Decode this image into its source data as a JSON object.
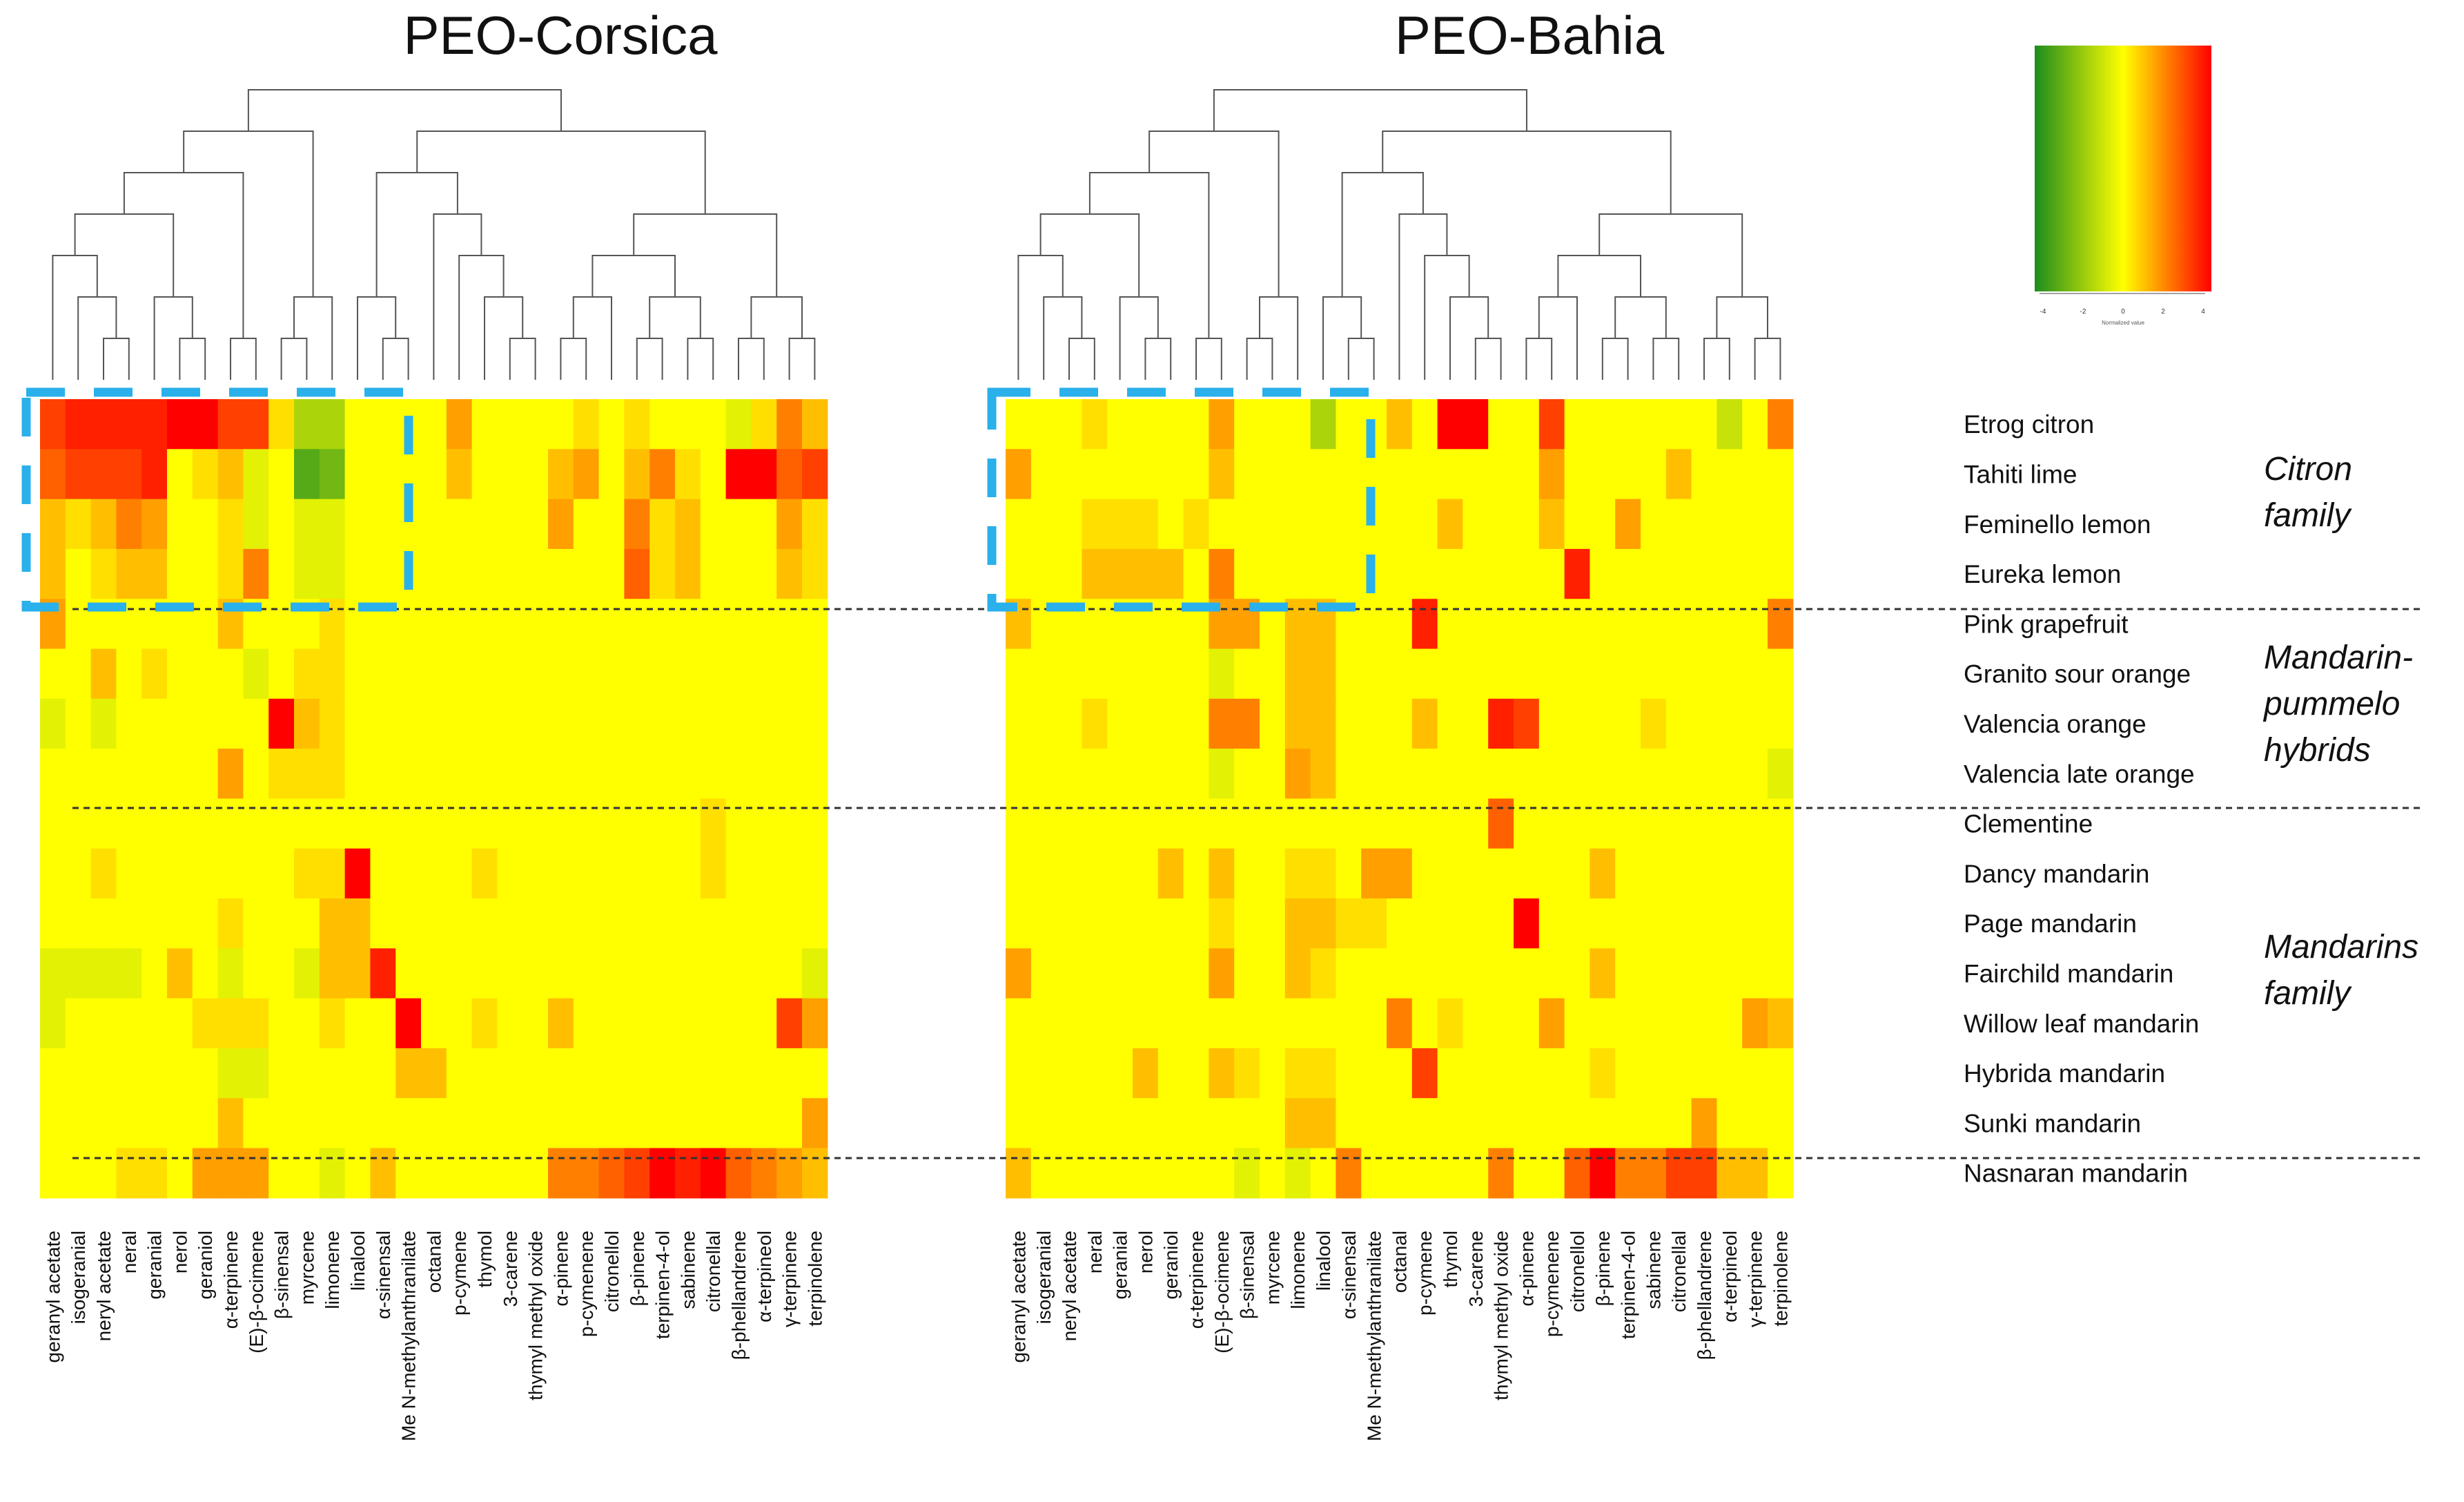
{
  "titles": {
    "left": "PEO-Corsica",
    "right": "PEO-Bahia"
  },
  "legend": {
    "ticks": [
      "-4",
      "-2",
      "0",
      "2",
      "4"
    ],
    "caption": "Normalized value",
    "colors": {
      "low": "#1e8c1e",
      "mid": "#ffff00",
      "high": "#ff0000"
    }
  },
  "families": [
    {
      "line1": "Citron",
      "line2": "family"
    },
    {
      "line1": "Mandarin-",
      "line2": "pummelo",
      "line3": "hybrids"
    },
    {
      "line1": "Mandarins",
      "line2": "family"
    }
  ],
  "chart_data": [
    {
      "type": "heatmap",
      "title": "PEO-Corsica",
      "value_range": [
        -4,
        4
      ],
      "rows": [
        "Etrog citron",
        "Tahiti lime",
        "Feminello lemon",
        "Eureka lemon",
        "Pink grapefruit",
        "Granito sour orange",
        "Valencia orange",
        "Valencia late orange",
        "Clementine",
        "Dancy mandarin",
        "Page mandarin",
        "Fairchild mandarin",
        "Willow leaf mandarin",
        "Hybrida mandarin",
        "Sunki mandarin",
        "Nasnaran mandarin"
      ],
      "columns": [
        "geranyl acetate",
        "isogeranial",
        "neryl acetate",
        "neral",
        "geranial",
        "nerol",
        "geraniol",
        "α-terpinene",
        "(E)-β-ocimene",
        "β-sinensal",
        "myrcene",
        "limonene",
        "linalool",
        "α-sinensal",
        "Me N-methylanthranilate",
        "octanal",
        "p-cymene",
        "thymol",
        "3-carene",
        "thymyl methyl oxide",
        "α-pinene",
        "p-cymenene",
        "citronellol",
        "β-pinene",
        "terpinen-4-ol",
        "sabinene",
        "citronellal",
        "β-phellandrene",
        "α-terpineol",
        "γ-terpinene",
        "terpinolene"
      ],
      "cells": [
        [
          3,
          3.5,
          3.5,
          3.5,
          3.5,
          4,
          4,
          3,
          3,
          0.5,
          -1.5,
          -1.5,
          0,
          0,
          0,
          0,
          1.5,
          0,
          0,
          0,
          0,
          0.5,
          0,
          0.5,
          0,
          0,
          0,
          -0.5,
          0.5,
          2,
          1
        ],
        [
          2.5,
          3,
          3,
          3,
          3.5,
          0,
          0.5,
          1,
          -0.5,
          0,
          -3,
          -2.5,
          0,
          0,
          0,
          0,
          1,
          0,
          0,
          0,
          1,
          1.5,
          0,
          1,
          2,
          0.5,
          0,
          4,
          4,
          2.5,
          3
        ],
        [
          1,
          0.5,
          1,
          2,
          1.5,
          0,
          0,
          0.5,
          -0.5,
          0,
          -0.5,
          -0.5,
          0,
          0,
          0,
          0,
          0,
          0,
          0,
          0,
          1.5,
          0,
          0,
          2,
          0.5,
          1,
          0,
          0,
          0,
          1.5,
          0.5
        ],
        [
          1,
          0,
          0.5,
          1,
          1,
          0,
          0,
          0.5,
          2,
          0,
          -0.5,
          -0.5,
          0,
          0,
          0,
          0,
          0,
          0,
          0,
          0,
          0,
          0,
          0,
          2.5,
          0.5,
          1,
          0,
          0,
          0,
          1,
          0.5
        ],
        [
          1.5,
          0,
          0,
          0,
          0,
          0,
          0,
          1,
          0,
          0,
          0,
          0.5,
          0,
          0,
          0,
          0,
          0,
          0,
          0,
          0,
          0,
          0,
          0,
          0,
          0,
          0,
          0,
          0,
          0,
          0,
          0
        ],
        [
          0,
          0,
          1,
          0,
          0.5,
          0,
          0,
          0,
          -0.5,
          0,
          0.5,
          0.5,
          0,
          0,
          0,
          0,
          0,
          0,
          0,
          0,
          0,
          0,
          0,
          0,
          0,
          0,
          0,
          0,
          0,
          0,
          0
        ],
        [
          -0.5,
          0,
          -0.5,
          0,
          0,
          0,
          0,
          0,
          0,
          4,
          1,
          0.5,
          0,
          0,
          0,
          0,
          0,
          0,
          0,
          0,
          0,
          0,
          0,
          0,
          0,
          0,
          0,
          0,
          0,
          0,
          0
        ],
        [
          0,
          0,
          0,
          0,
          0,
          0,
          0,
          1.5,
          0,
          0.5,
          0.5,
          0.5,
          0,
          0,
          0,
          0,
          0,
          0,
          0,
          0,
          0,
          0,
          0,
          0,
          0,
          0,
          0,
          0,
          0,
          0,
          0
        ],
        [
          0,
          0,
          0,
          0,
          0,
          0,
          0,
          0,
          0,
          0,
          0,
          0,
          0,
          0,
          0,
          0,
          0,
          0,
          0,
          0,
          0,
          0,
          0,
          0,
          0,
          0,
          0.5,
          0,
          0,
          0,
          0
        ],
        [
          0,
          0,
          0.5,
          0,
          0,
          0,
          0,
          0,
          0,
          0,
          0.5,
          0.5,
          4,
          0,
          0,
          0,
          0,
          0.5,
          0,
          0,
          0,
          0,
          0,
          0,
          0,
          0,
          0.5,
          0,
          0,
          0,
          0
        ],
        [
          0,
          0,
          0,
          0,
          0,
          0,
          0,
          0.5,
          0,
          0,
          0,
          1,
          1,
          0,
          0,
          0,
          0,
          0,
          0,
          0,
          0,
          0,
          0,
          0,
          0,
          0,
          0,
          0,
          0,
          0,
          0
        ],
        [
          -0.5,
          -0.5,
          -0.5,
          -0.5,
          0,
          1,
          0,
          -0.5,
          0,
          0,
          -0.5,
          1,
          1,
          3.5,
          0,
          0,
          0,
          0,
          0,
          0,
          0,
          0,
          0,
          0,
          0,
          0,
          0,
          0,
          0,
          0,
          -0.5
        ],
        [
          -0.5,
          0,
          0,
          0,
          0,
          0,
          0.5,
          0.5,
          0.5,
          0,
          0,
          0.5,
          0,
          0,
          4,
          0,
          0,
          0.5,
          0,
          0,
          1,
          0,
          0,
          0,
          0,
          0,
          0,
          0,
          0,
          3,
          1.5
        ],
        [
          0,
          0,
          0,
          0,
          0,
          0,
          0,
          -0.5,
          -0.5,
          0,
          0,
          0,
          0,
          0,
          1,
          1,
          0,
          0,
          0,
          0,
          0,
          0,
          0,
          0,
          0,
          0,
          0,
          0,
          0,
          0,
          0
        ],
        [
          0,
          0,
          0,
          0,
          0,
          0,
          0,
          1,
          0,
          0,
          0,
          0,
          0,
          0,
          0,
          0,
          0,
          0,
          0,
          0,
          0,
          0,
          0,
          0,
          0,
          0,
          0,
          0,
          0,
          0,
          1.5
        ],
        [
          0,
          0,
          0,
          0.5,
          0.5,
          0,
          1.5,
          1.5,
          1.5,
          0,
          0,
          -0.5,
          0,
          1,
          0,
          0,
          0,
          0,
          0,
          0,
          2,
          2,
          2.5,
          3,
          4,
          3.5,
          4,
          2.5,
          2,
          1.5,
          1
        ]
      ]
    },
    {
      "type": "heatmap",
      "title": "PEO-Bahia",
      "value_range": [
        -4,
        4
      ],
      "rows": [
        "Etrog citron",
        "Tahiti lime",
        "Feminello lemon",
        "Eureka lemon",
        "Pink grapefruit",
        "Granito sour orange",
        "Valencia orange",
        "Valencia late orange",
        "Clementine",
        "Dancy mandarin",
        "Page mandarin",
        "Fairchild mandarin",
        "Willow leaf mandarin",
        "Hybrida mandarin",
        "Sunki mandarin",
        "Nasnaran mandarin"
      ],
      "columns": [
        "geranyl acetate",
        "isogeranial",
        "neryl acetate",
        "neral",
        "geranial",
        "nerol",
        "geraniol",
        "α-terpinene",
        "(E)-β-ocimene",
        "β-sinensal",
        "myrcene",
        "limonene",
        "linalool",
        "α-sinensal",
        "Me N-methylanthranilate",
        "octanal",
        "p-cymene",
        "thymol",
        "3-carene",
        "thymyl methyl oxide",
        "α-pinene",
        "p-cymenene",
        "citronellol",
        "β-pinene",
        "terpinen-4-ol",
        "sabinene",
        "citronellal",
        "β-phellandrene",
        "α-terpineol",
        "γ-terpinene",
        "terpinolene"
      ],
      "cells": [
        [
          0,
          0,
          0,
          0.5,
          0,
          0,
          0,
          0,
          1.5,
          0,
          0,
          0,
          -1.5,
          0,
          0,
          1,
          0,
          4,
          4,
          0,
          0,
          3,
          0,
          0,
          0,
          0,
          0,
          0,
          -1,
          0,
          2
        ],
        [
          1.5,
          0,
          0,
          0,
          0,
          0,
          0,
          0,
          1,
          0,
          0,
          0,
          0,
          0,
          0,
          0,
          0,
          0,
          0,
          0,
          0,
          1.5,
          0,
          0,
          0,
          0,
          1,
          0,
          0,
          0,
          0
        ],
        [
          0,
          0,
          0,
          0.5,
          0.5,
          0.5,
          0,
          0.5,
          0,
          0,
          0,
          0,
          0,
          0,
          0,
          0,
          0,
          1,
          0,
          0,
          0,
          1,
          0,
          0,
          1.5,
          0,
          0,
          0,
          0,
          0,
          0
        ],
        [
          0,
          0,
          0,
          1,
          1,
          1,
          1,
          0,
          2,
          0,
          0,
          0,
          0,
          0,
          0,
          0,
          0,
          0,
          0,
          0,
          0,
          0,
          3.5,
          0,
          0,
          0,
          0,
          0,
          0,
          0,
          0
        ],
        [
          1,
          0,
          0,
          0,
          0,
          0,
          0,
          0,
          1.5,
          1.5,
          0,
          1,
          1,
          0,
          0,
          0,
          3.5,
          0,
          0,
          0,
          0,
          0,
          0,
          0,
          0,
          0,
          0,
          0,
          0,
          0,
          2
        ],
        [
          0,
          0,
          0,
          0,
          0,
          0,
          0,
          0,
          -0.5,
          0,
          0,
          1,
          1,
          0,
          0,
          0,
          0,
          0,
          0,
          0,
          0,
          0,
          0,
          0,
          0,
          0,
          0,
          0,
          0,
          0,
          0
        ],
        [
          0,
          0,
          0,
          0.5,
          0,
          0,
          0,
          0,
          2,
          2,
          0,
          1,
          1,
          0,
          0,
          0,
          1,
          0,
          0,
          3.5,
          3,
          0,
          0,
          0,
          0,
          0.5,
          0,
          0,
          0,
          0,
          0
        ],
        [
          0,
          0,
          0,
          0,
          0,
          0,
          0,
          0,
          -0.5,
          0,
          0,
          1.5,
          1,
          0,
          0,
          0,
          0,
          0,
          0,
          0,
          0,
          0,
          0,
          0,
          0,
          0,
          0,
          0,
          0,
          0,
          -0.5
        ],
        [
          0,
          0,
          0,
          0,
          0,
          0,
          0,
          0,
          0,
          0,
          0,
          0,
          0,
          0,
          0,
          0,
          0,
          0,
          0,
          2.5,
          0,
          0,
          0,
          0,
          0,
          0,
          0,
          0,
          0,
          0,
          0
        ],
        [
          0,
          0,
          0,
          0,
          0,
          0,
          1,
          0,
          1,
          0,
          0,
          0.5,
          0.5,
          0,
          1.5,
          1.5,
          0,
          0,
          0,
          0,
          0,
          0,
          0,
          1,
          0,
          0,
          0,
          0,
          0,
          0,
          0
        ],
        [
          0,
          0,
          0,
          0,
          0,
          0,
          0,
          0,
          0.5,
          0,
          0,
          1,
          1,
          0.5,
          0.5,
          0,
          0,
          0,
          0,
          0,
          4,
          0,
          0,
          0,
          0,
          0,
          0,
          0,
          0,
          0,
          0
        ],
        [
          1.5,
          0,
          0,
          0,
          0,
          0,
          0,
          0,
          1.5,
          0,
          0,
          1,
          0.5,
          0,
          0,
          0,
          0,
          0,
          0,
          0,
          0,
          0,
          0,
          1,
          0,
          0,
          0,
          0,
          0,
          0,
          0
        ],
        [
          0,
          0,
          0,
          0,
          0,
          0,
          0,
          0,
          0,
          0,
          0,
          0,
          0,
          0,
          0,
          2,
          0,
          0.5,
          0,
          0,
          0,
          1.5,
          0,
          0,
          0,
          0,
          0,
          0,
          0,
          1.5,
          1
        ],
        [
          0,
          0,
          0,
          0,
          0,
          1,
          0,
          0,
          1,
          0.5,
          0,
          0.5,
          0.5,
          0,
          0,
          0,
          3,
          0,
          0,
          0,
          0,
          0,
          0,
          0.5,
          0,
          0,
          0,
          0,
          0,
          0,
          0
        ],
        [
          0,
          0,
          0,
          0,
          0,
          0,
          0,
          0,
          0,
          0,
          0,
          1,
          1,
          0,
          0,
          0,
          0,
          0,
          0,
          0,
          0,
          0,
          0,
          0,
          0,
          0,
          0,
          1.5,
          0,
          0,
          0
        ],
        [
          1,
          0,
          0,
          0,
          0,
          0,
          0,
          0,
          0,
          -0.5,
          0,
          -0.5,
          0,
          2,
          0,
          0,
          0,
          0,
          0,
          2,
          0,
          0,
          2.5,
          4,
          2,
          2,
          3,
          3,
          1,
          1,
          0
        ]
      ]
    }
  ]
}
